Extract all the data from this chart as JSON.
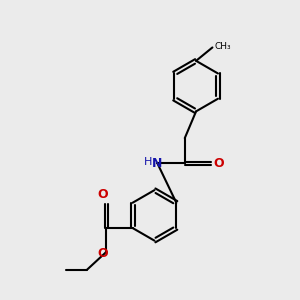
{
  "background_color": "#ebebeb",
  "bond_color": "#000000",
  "N_color": "#1414aa",
  "O_color": "#cc0000",
  "text_color": "#000000",
  "line_width": 1.5,
  "figsize": [
    3.0,
    3.0
  ],
  "dpi": 100,
  "xlim": [
    0,
    10
  ],
  "ylim": [
    0,
    10
  ]
}
